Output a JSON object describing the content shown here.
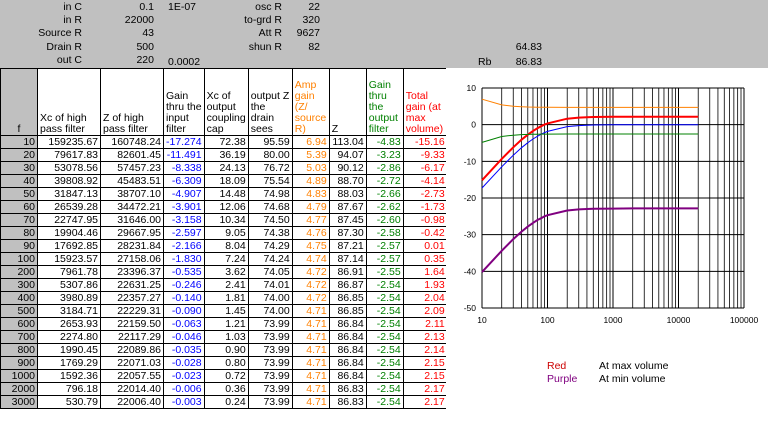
{
  "params": {
    "left": [
      {
        "label": "in C",
        "value": "0.1",
        "extra": "1E-07"
      },
      {
        "label": "in R",
        "value": "22000",
        "extra": ""
      },
      {
        "label": "Source R",
        "value": "43",
        "extra": ""
      },
      {
        "label": "Drain R",
        "value": "500",
        "extra": ""
      },
      {
        "label": "out C",
        "value": "220",
        "extra": "0.0002"
      }
    ],
    "right": [
      {
        "label": "osc R",
        "value": "22"
      },
      {
        "label": "to-grd R",
        "value": "320"
      },
      {
        "label": "Att R",
        "value": "9627"
      },
      {
        "label": "shun R",
        "value": "82"
      }
    ],
    "rb_value_top": "64.83",
    "rb_label": "Rb",
    "rb_value": "86.83"
  },
  "table": {
    "headers": [
      "f",
      "Xc of high pass filter",
      "Z of high pass filter",
      "Gain thru the input filter",
      "Xc of output coupling cap",
      "output Z the drain sees",
      "Amp gain (Z/ source R)",
      "Z",
      "Gain thru the output filter",
      "Total gain (at max volume)"
    ],
    "rows": [
      [
        "10",
        "159235.67",
        "160748.24",
        "-17.274",
        "72.38",
        "95.59",
        "6.94",
        "113.04",
        "-4.83",
        "-15.16"
      ],
      [
        "20",
        "79617.83",
        "82601.45",
        "-11.491",
        "36.19",
        "80.00",
        "5.39",
        "94.07",
        "-3.23",
        "-9.33"
      ],
      [
        "30",
        "53078.56",
        "57457.23",
        "-8.338",
        "24.13",
        "76.72",
        "5.03",
        "90.12",
        "-2.86",
        "-6.17"
      ],
      [
        "40",
        "39808.92",
        "45483.51",
        "-6.309",
        "18.09",
        "75.54",
        "4.89",
        "88.70",
        "-2.72",
        "-4.14"
      ],
      [
        "50",
        "31847.13",
        "38707.10",
        "-4.907",
        "14.48",
        "74.98",
        "4.83",
        "88.03",
        "-2.66",
        "-2.73"
      ],
      [
        "60",
        "26539.28",
        "34472.21",
        "-3.901",
        "12.06",
        "74.68",
        "4.79",
        "87.67",
        "-2.62",
        "-1.73"
      ],
      [
        "70",
        "22747.95",
        "31646.00",
        "-3.158",
        "10.34",
        "74.50",
        "4.77",
        "87.45",
        "-2.60",
        "-0.98"
      ],
      [
        "80",
        "19904.46",
        "29667.95",
        "-2.597",
        "9.05",
        "74.38",
        "4.76",
        "87.30",
        "-2.58",
        "-0.42"
      ],
      [
        "90",
        "17692.85",
        "28231.84",
        "-2.166",
        "8.04",
        "74.29",
        "4.75",
        "87.21",
        "-2.57",
        "0.01"
      ],
      [
        "100",
        "15923.57",
        "27158.06",
        "-1.830",
        "7.24",
        "74.24",
        "4.74",
        "87.14",
        "-2.57",
        "0.35"
      ],
      [
        "200",
        "7961.78",
        "23396.37",
        "-0.535",
        "3.62",
        "74.05",
        "4.72",
        "86.91",
        "-2.55",
        "1.64"
      ],
      [
        "300",
        "5307.86",
        "22631.25",
        "-0.246",
        "2.41",
        "74.01",
        "4.72",
        "86.87",
        "-2.54",
        "1.93"
      ],
      [
        "400",
        "3980.89",
        "22357.27",
        "-0.140",
        "1.81",
        "74.00",
        "4.72",
        "86.85",
        "-2.54",
        "2.04"
      ],
      [
        "500",
        "3184.71",
        "22229.31",
        "-0.090",
        "1.45",
        "74.00",
        "4.71",
        "86.85",
        "-2.54",
        "2.09"
      ],
      [
        "600",
        "2653.93",
        "22159.50",
        "-0.063",
        "1.21",
        "73.99",
        "4.71",
        "86.84",
        "-2.54",
        "2.11"
      ],
      [
        "700",
        "2274.80",
        "22117.29",
        "-0.046",
        "1.03",
        "73.99",
        "4.71",
        "86.84",
        "-2.54",
        "2.13"
      ],
      [
        "800",
        "1990.45",
        "22089.86",
        "-0.035",
        "0.90",
        "73.99",
        "4.71",
        "86.84",
        "-2.54",
        "2.14"
      ],
      [
        "900",
        "1769.29",
        "22071.03",
        "-0.028",
        "0.80",
        "73.99",
        "4.71",
        "86.84",
        "-2.54",
        "2.15"
      ],
      [
        "1000",
        "1592.36",
        "22057.55",
        "-0.023",
        "0.72",
        "73.99",
        "4.71",
        "86.84",
        "-2.54",
        "2.15"
      ],
      [
        "2000",
        "796.18",
        "22014.40",
        "-0.006",
        "0.36",
        "73.99",
        "4.71",
        "86.83",
        "-2.54",
        "2.17"
      ],
      [
        "3000",
        "530.79",
        "22006.40",
        "-0.003",
        "0.24",
        "73.99",
        "4.71",
        "86.83",
        "-2.54",
        "2.17"
      ]
    ]
  },
  "legend": [
    {
      "color_name": "Red",
      "desc": "At max volume",
      "color": "#cc0000"
    },
    {
      "color_name": "Purple",
      "desc": "At min volume",
      "color": "#800080"
    }
  ],
  "chart_data": {
    "type": "line",
    "x_scale": "log",
    "xlim": [
      10,
      100000
    ],
    "ylim": [
      -50,
      10
    ],
    "x_ticks": [
      "10",
      "100",
      "1000",
      "10000",
      "100000"
    ],
    "y_ticks": [
      "10",
      "0",
      "-10",
      "-20",
      "-30",
      "-40",
      "-50"
    ],
    "grid": true,
    "series": [
      {
        "color": "#ff0000",
        "x": [
          10,
          20,
          30,
          40,
          50,
          60,
          70,
          80,
          90,
          100,
          200,
          300,
          400,
          500,
          1000,
          2000,
          5000,
          10000,
          20000
        ],
        "y": [
          -15.16,
          -9.33,
          -6.17,
          -4.14,
          -2.73,
          -1.73,
          -0.98,
          -0.42,
          0.01,
          0.35,
          1.64,
          1.93,
          2.04,
          2.09,
          2.15,
          2.17,
          2.17,
          2.17,
          2.17
        ]
      },
      {
        "color": "#0000ff",
        "x": [
          10,
          20,
          30,
          40,
          50,
          60,
          70,
          80,
          90,
          100,
          200,
          300,
          400,
          500,
          1000,
          2000,
          5000,
          10000,
          20000
        ],
        "y": [
          -17.27,
          -11.49,
          -8.34,
          -6.31,
          -4.91,
          -3.9,
          -3.16,
          -2.6,
          -2.17,
          -1.83,
          -0.54,
          -0.25,
          -0.14,
          -0.09,
          -0.02,
          -0.01,
          0,
          0,
          0
        ]
      },
      {
        "color": "#ff8000",
        "x": [
          10,
          20,
          30,
          40,
          50,
          60,
          70,
          80,
          90,
          100,
          200,
          500,
          1000,
          5000,
          10000,
          20000
        ],
        "y": [
          6.94,
          5.39,
          5.03,
          4.89,
          4.83,
          4.79,
          4.77,
          4.76,
          4.75,
          4.74,
          4.72,
          4.71,
          4.71,
          4.71,
          4.71,
          4.71
        ]
      },
      {
        "color": "#008000",
        "x": [
          10,
          20,
          30,
          40,
          50,
          60,
          70,
          80,
          90,
          100,
          200,
          500,
          1000,
          5000,
          10000,
          20000
        ],
        "y": [
          -4.83,
          -3.23,
          -2.86,
          -2.72,
          -2.66,
          -2.62,
          -2.6,
          -2.58,
          -2.57,
          -2.57,
          -2.55,
          -2.54,
          -2.54,
          -2.54,
          -2.54,
          -2.54
        ]
      },
      {
        "color": "#800080",
        "x": [
          10,
          20,
          30,
          40,
          50,
          60,
          70,
          80,
          90,
          100,
          200,
          300,
          400,
          500,
          1000,
          2000,
          5000,
          10000,
          20000
        ],
        "y": [
          -40.2,
          -34.4,
          -31.2,
          -29.2,
          -27.8,
          -26.8,
          -26.0,
          -25.5,
          -25.0,
          -24.7,
          -23.4,
          -23.1,
          -23.0,
          -22.95,
          -22.9,
          -22.85,
          -22.85,
          -22.85,
          -22.85
        ]
      }
    ]
  }
}
